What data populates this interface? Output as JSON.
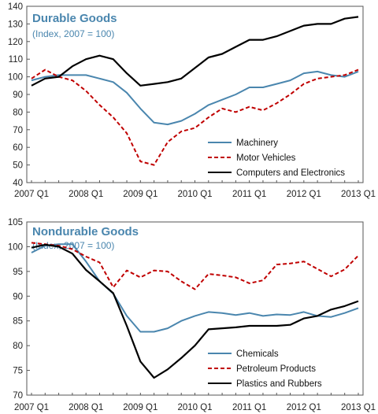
{
  "colors": {
    "title": "#4a86ae",
    "blue": "#4a86ae",
    "red": "#c00000",
    "black": "#000000",
    "frame": "#555555"
  },
  "chart_data": [
    {
      "type": "line",
      "title": "Durable Goods",
      "subtitle": "(Index, 2007 = 100)",
      "x": [
        "2007Q1",
        "2007Q2",
        "2007Q3",
        "2007Q4",
        "2008Q1",
        "2008Q2",
        "2008Q3",
        "2008Q4",
        "2009Q1",
        "2009Q2",
        "2009Q3",
        "2009Q4",
        "2010Q1",
        "2010Q2",
        "2010Q3",
        "2010Q4",
        "2011Q1",
        "2011Q2",
        "2011Q3",
        "2011Q4",
        "2012Q1",
        "2012Q2",
        "2012Q3",
        "2012Q4",
        "2013Q1"
      ],
      "x_tick_labels": [
        "2007 Q1",
        "2008 Q1",
        "2009 Q1",
        "2010 Q1",
        "2011 Q1",
        "2012 Q1",
        "2013 Q1"
      ],
      "ylim": [
        40,
        140
      ],
      "yticks": [
        40,
        50,
        60,
        70,
        80,
        90,
        100,
        110,
        120,
        130,
        140
      ],
      "legend_position": "bottom-right",
      "series": [
        {
          "name": "Machinery",
          "color": "blue",
          "dash": false,
          "values": [
            98,
            100,
            101,
            101,
            101,
            99,
            97,
            91,
            82,
            74,
            73,
            75,
            79,
            84,
            87,
            90,
            94,
            94,
            96,
            98,
            102,
            103,
            101,
            100,
            103
          ]
        },
        {
          "name": "Motor Vehicles",
          "color": "red",
          "dash": true,
          "values": [
            99,
            104,
            100,
            98,
            92,
            84,
            77,
            68,
            52,
            50,
            63,
            69,
            71,
            77,
            82,
            80,
            83,
            81,
            85,
            90,
            96,
            99,
            100,
            101,
            104
          ]
        },
        {
          "name": "Computers and Electronics",
          "color": "black",
          "dash": false,
          "values": [
            95,
            99,
            100,
            106,
            110,
            112,
            110,
            102,
            95,
            96,
            97,
            99,
            105,
            111,
            113,
            117,
            121,
            121,
            123,
            126,
            129,
            130,
            130,
            133,
            134
          ]
        }
      ]
    },
    {
      "type": "line",
      "title": "Nondurable Goods",
      "subtitle": "(Index, 2007 = 100)",
      "x": [
        "2007Q1",
        "2007Q2",
        "2007Q3",
        "2007Q4",
        "2008Q1",
        "2008Q2",
        "2008Q3",
        "2008Q4",
        "2009Q1",
        "2009Q2",
        "2009Q3",
        "2009Q4",
        "2010Q1",
        "2010Q2",
        "2010Q3",
        "2010Q4",
        "2011Q1",
        "2011Q2",
        "2011Q3",
        "2011Q4",
        "2012Q1",
        "2012Q2",
        "2012Q3",
        "2012Q4",
        "2013Q1"
      ],
      "x_tick_labels": [
        "2007 Q1",
        "2008 Q1",
        "2009 Q1",
        "2010 Q1",
        "2011 Q1",
        "2012 Q1",
        "2013 Q1"
      ],
      "ylim": [
        70,
        105
      ],
      "yticks": [
        70,
        75,
        80,
        85,
        90,
        95,
        100,
        105
      ],
      "legend_position": "bottom-right",
      "series": [
        {
          "name": "Chemicals",
          "color": "blue",
          "dash": false,
          "values": [
            98.8,
            100.2,
            100.5,
            100.5,
            97,
            93,
            90.5,
            86,
            82.8,
            82.8,
            83.5,
            85,
            86,
            86.8,
            86.6,
            86.2,
            86.6,
            86,
            86.3,
            86.2,
            86.8,
            86,
            85.8,
            86.6,
            87.6
          ]
        },
        {
          "name": "Petroleum Products",
          "color": "red",
          "dash": true,
          "values": [
            100.8,
            100.5,
            100.2,
            99.5,
            98,
            96.8,
            91.8,
            95.2,
            93.8,
            95.2,
            95,
            93,
            91.4,
            94.5,
            94.2,
            93.8,
            92.6,
            93.2,
            96.4,
            96.6,
            97,
            95.5,
            94,
            95.4,
            98.2
          ]
        },
        {
          "name": "Plastics and Rubbers",
          "color": "black",
          "dash": false,
          "values": [
            99.8,
            100.4,
            100,
            98.6,
            95.3,
            93,
            90.6,
            84,
            76.8,
            73.5,
            75.2,
            77.5,
            80,
            83.3,
            83.5,
            83.7,
            84,
            84,
            84,
            84.2,
            85.5,
            86,
            87.3,
            88,
            89
          ]
        }
      ]
    }
  ]
}
